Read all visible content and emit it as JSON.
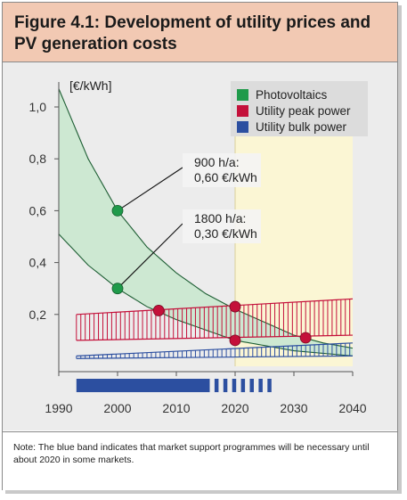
{
  "title": "Figure 4.1: Development of utility prices and PV generation costs",
  "note": "Note: The blue band indicates that market support programmes will be necessary until about 2020 in some markets.",
  "colors": {
    "header_bg": "#f2c9b3",
    "plot_bg": "#ececec",
    "highlight_bg": "#fbf6d4",
    "pv": "#1f9a4a",
    "pv_band": "#cde8d2",
    "peak": "#c4103a",
    "bulk": "#2c4fa0",
    "support_band": "#2c4fa0"
  },
  "chart_data": {
    "type": "area",
    "title": "",
    "xlabel": "",
    "ylabel": "[€/kWh]",
    "xlim": [
      1990,
      2040
    ],
    "ylim": [
      0,
      1.0
    ],
    "x_ticks": [
      "1990",
      "2000",
      "2010",
      "2020",
      "2030",
      "2040"
    ],
    "y_ticks": [
      "1,0",
      "0,8",
      "0,6",
      "0,4",
      "0,2"
    ],
    "grid": false,
    "legend_position": "top-right",
    "legend": [
      {
        "label": "Photovoltaics",
        "color": "#1f9a4a"
      },
      {
        "label": "Utility peak power",
        "color": "#c4103a"
      },
      {
        "label": "Utility bulk power",
        "color": "#2c4fa0"
      }
    ],
    "highlight_region": [
      2020,
      2040
    ],
    "series": [
      {
        "name": "Photovoltaics",
        "style": "band-filled",
        "upper": {
          "x": [
            1990,
            1995,
            2000,
            2005,
            2010,
            2015,
            2020,
            2025,
            2030,
            2035,
            2040
          ],
          "y": [
            1.07,
            0.8,
            0.6,
            0.46,
            0.36,
            0.28,
            0.22,
            0.17,
            0.12,
            0.09,
            0.07
          ]
        },
        "lower": {
          "x": [
            1990,
            1995,
            2000,
            2005,
            2010,
            2015,
            2020,
            2025,
            2030,
            2035,
            2040
          ],
          "y": [
            0.51,
            0.39,
            0.3,
            0.23,
            0.18,
            0.14,
            0.1,
            0.08,
            0.06,
            0.05,
            0.04
          ]
        }
      },
      {
        "name": "Utility peak power",
        "style": "band-hatched",
        "upper": {
          "x": [
            1993,
            2040
          ],
          "y": [
            0.2,
            0.26
          ]
        },
        "lower": {
          "x": [
            1993,
            2040
          ],
          "y": [
            0.1,
            0.12
          ]
        }
      },
      {
        "name": "Utility bulk power",
        "style": "band-hatched",
        "upper": {
          "x": [
            1993,
            2040
          ],
          "y": [
            0.04,
            0.09
          ]
        },
        "lower": {
          "x": [
            1993,
            2040
          ],
          "y": [
            0.03,
            0.04
          ]
        }
      }
    ],
    "points": [
      {
        "series": "Photovoltaics",
        "x": 2000,
        "y": 0.6
      },
      {
        "series": "Photovoltaics",
        "x": 2000,
        "y": 0.3
      },
      {
        "series": "Utility peak power",
        "x": 2007,
        "y": 0.215
      },
      {
        "series": "Utility peak power",
        "x": 2020,
        "y": 0.23
      },
      {
        "series": "Utility peak power",
        "x": 2020,
        "y": 0.1
      },
      {
        "series": "Utility peak power",
        "x": 2032,
        "y": 0.11
      }
    ],
    "annotations": [
      {
        "lines": [
          "900 h/a:",
          "0,60 €/kWh"
        ],
        "points_to": {
          "x": 2000,
          "y": 0.6
        }
      },
      {
        "lines": [
          "1800 h/a:",
          "0,30 €/kWh"
        ],
        "points_to": {
          "x": 2000,
          "y": 0.3
        }
      }
    ],
    "support_band": {
      "x_solid": [
        1993,
        2015
      ],
      "x_dashed": [
        2015,
        2026
      ]
    }
  }
}
